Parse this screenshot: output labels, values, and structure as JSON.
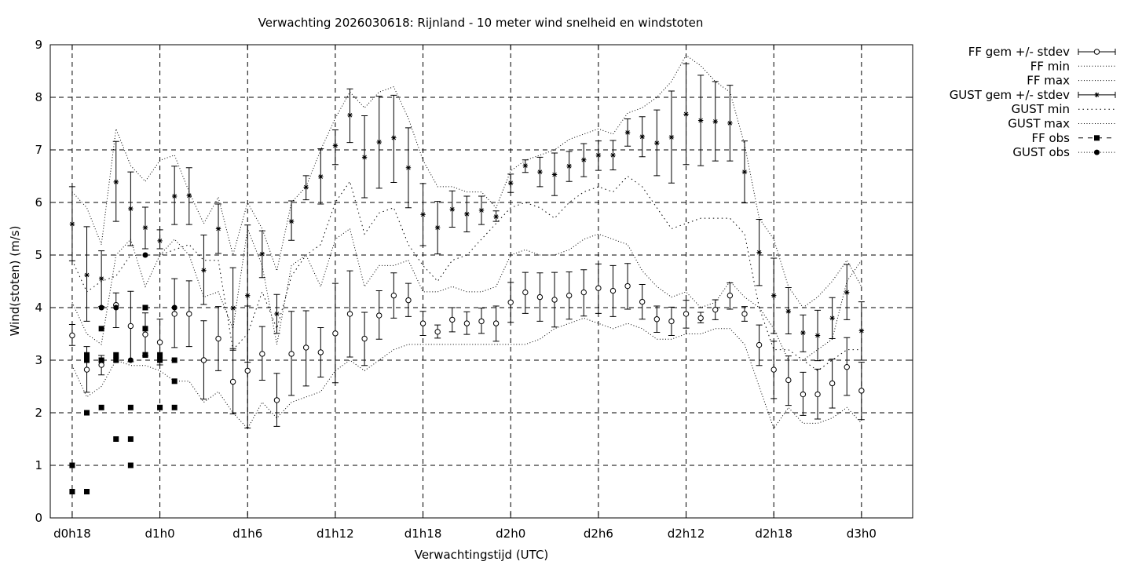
{
  "chart_data": {
    "type": "line",
    "title": "Verwachting 2026030618: Rijnland - 10 meter wind snelheid en windstoten",
    "xlabel": "Verwachtingstijd (UTC)",
    "ylabel": "Wind(stoten) (m/s)",
    "x_unit": "hours since d0h18",
    "xlim": [
      -1.5,
      57.5
    ],
    "ylim": [
      0,
      9
    ],
    "yticks": [
      0,
      1,
      2,
      3,
      4,
      5,
      6,
      7,
      8,
      9
    ],
    "xticks": [
      {
        "x": 0,
        "label": "d0h18"
      },
      {
        "x": 6,
        "label": "d1h0"
      },
      {
        "x": 12,
        "label": "d1h6"
      },
      {
        "x": 18,
        "label": "d1h12"
      },
      {
        "x": 24,
        "label": "d1h18"
      },
      {
        "x": 30,
        "label": "d2h0"
      },
      {
        "x": 36,
        "label": "d2h6"
      },
      {
        "x": 42,
        "label": "d2h12"
      },
      {
        "x": 48,
        "label": "d2h18"
      },
      {
        "x": 54,
        "label": "d3h0"
      }
    ],
    "grid": true,
    "legend_position": "outside-right",
    "series": [
      {
        "name": "FF gem +/- stdev",
        "style": "errorbar-circle",
        "x": [
          0,
          1,
          2,
          3,
          4,
          5,
          6,
          7,
          8,
          9,
          10,
          11,
          12,
          13,
          14,
          15,
          16,
          17,
          18,
          19,
          20,
          21,
          22,
          23,
          24,
          25,
          26,
          27,
          28,
          29,
          30,
          31,
          32,
          33,
          34,
          35,
          36,
          37,
          38,
          39,
          40,
          41,
          42,
          43,
          44,
          45,
          46,
          47,
          48,
          49,
          50,
          51,
          52,
          53,
          54
        ],
        "y": [
          3.47,
          2.82,
          2.91,
          4.05,
          3.65,
          3.49,
          3.34,
          3.88,
          3.88,
          3.0,
          3.41,
          2.59,
          2.8,
          3.12,
          2.24,
          3.12,
          3.24,
          3.15,
          3.51,
          3.88,
          3.41,
          3.85,
          4.23,
          4.14,
          3.7,
          3.54,
          3.77,
          3.7,
          3.74,
          3.7,
          4.1,
          4.29,
          4.2,
          4.15,
          4.23,
          4.29,
          4.37,
          4.32,
          4.41,
          4.11,
          3.78,
          3.74,
          3.88,
          3.8,
          3.96,
          4.23,
          3.88,
          3.29,
          2.82,
          2.62,
          2.35,
          2.35,
          2.56,
          2.87,
          2.42
        ],
        "ylow": [
          3.28,
          2.39,
          2.72,
          3.62,
          2.97,
          3.08,
          2.91,
          3.24,
          3.26,
          2.26,
          2.8,
          1.98,
          1.71,
          2.62,
          1.74,
          2.33,
          2.51,
          2.68,
          2.57,
          3.06,
          2.9,
          3.4,
          3.8,
          3.83,
          3.47,
          3.42,
          3.54,
          3.49,
          3.51,
          3.36,
          3.72,
          3.89,
          3.74,
          3.63,
          3.78,
          3.84,
          3.89,
          3.83,
          3.97,
          3.78,
          3.53,
          3.47,
          3.61,
          3.71,
          3.77,
          3.97,
          3.74,
          2.9,
          2.27,
          2.14,
          1.95,
          1.88,
          2.09,
          2.33,
          1.87
        ],
        "yhigh": [
          3.68,
          3.26,
          3.09,
          4.28,
          4.31,
          3.9,
          3.78,
          4.55,
          4.51,
          3.75,
          4.02,
          3.19,
          4.03,
          3.64,
          2.75,
          3.93,
          3.94,
          3.62,
          4.46,
          4.7,
          3.91,
          4.32,
          4.66,
          4.46,
          3.93,
          3.67,
          4.0,
          3.92,
          3.99,
          4.03,
          4.48,
          4.67,
          4.66,
          4.67,
          4.68,
          4.72,
          4.83,
          4.8,
          4.84,
          4.44,
          4.03,
          4.01,
          4.14,
          3.91,
          4.15,
          4.47,
          4.02,
          3.67,
          3.36,
          3.08,
          2.77,
          2.83,
          3.02,
          3.43,
          2.96
        ]
      },
      {
        "name": "FF min",
        "style": "dotted",
        "x": [
          0,
          1,
          2,
          3,
          4,
          5,
          6,
          7,
          8,
          9,
          10,
          11,
          12,
          13,
          14,
          15,
          16,
          17,
          18,
          19,
          20,
          21,
          22,
          23,
          24,
          25,
          26,
          27,
          28,
          29,
          30,
          31,
          32,
          33,
          34,
          35,
          36,
          37,
          38,
          39,
          40,
          41,
          42,
          43,
          44,
          45,
          46,
          47,
          48,
          49,
          50,
          51,
          52,
          53,
          54
        ],
        "y": [
          2.9,
          2.3,
          2.5,
          3.0,
          2.9,
          2.9,
          2.8,
          2.6,
          2.6,
          2.2,
          2.4,
          2.0,
          1.7,
          2.2,
          1.9,
          2.2,
          2.3,
          2.4,
          2.8,
          3.0,
          2.8,
          3.0,
          3.2,
          3.3,
          3.3,
          3.3,
          3.3,
          3.3,
          3.3,
          3.3,
          3.3,
          3.3,
          3.4,
          3.6,
          3.7,
          3.8,
          3.7,
          3.6,
          3.7,
          3.6,
          3.4,
          3.4,
          3.5,
          3.5,
          3.6,
          3.6,
          3.3,
          2.5,
          1.7,
          2.1,
          1.8,
          1.8,
          1.9,
          2.1,
          1.8
        ]
      },
      {
        "name": "FF max",
        "style": "dotted",
        "x": [
          0,
          1,
          2,
          3,
          4,
          5,
          6,
          7,
          8,
          9,
          10,
          11,
          12,
          13,
          14,
          15,
          16,
          17,
          18,
          19,
          20,
          21,
          22,
          23,
          24,
          25,
          26,
          27,
          28,
          29,
          30,
          31,
          32,
          33,
          34,
          35,
          36,
          37,
          38,
          39,
          40,
          41,
          42,
          43,
          44,
          45,
          46,
          47,
          48,
          49,
          50,
          51,
          52,
          53,
          54
        ],
        "y": [
          4.1,
          3.5,
          3.3,
          5.0,
          5.3,
          4.4,
          5.0,
          5.3,
          5.0,
          4.2,
          4.3,
          3.6,
          5.5,
          4.8,
          3.3,
          4.8,
          5.0,
          4.4,
          5.3,
          5.5,
          4.4,
          4.8,
          4.8,
          4.9,
          4.3,
          4.3,
          4.4,
          4.3,
          4.3,
          4.4,
          5.0,
          5.1,
          5.0,
          5.0,
          5.1,
          5.3,
          5.4,
          5.3,
          5.2,
          4.7,
          4.4,
          4.2,
          4.3,
          4.0,
          4.1,
          4.5,
          4.2,
          4.0,
          3.6,
          3.0,
          3.0,
          3.2,
          3.4,
          4.5,
          4.9
        ]
      },
      {
        "name": "GUST gem +/- stdev",
        "style": "errorbar-star",
        "x": [
          0,
          1,
          2,
          3,
          4,
          5,
          6,
          7,
          8,
          9,
          10,
          11,
          12,
          13,
          14,
          15,
          16,
          17,
          18,
          19,
          20,
          21,
          22,
          23,
          24,
          25,
          26,
          27,
          28,
          29,
          30,
          31,
          32,
          33,
          34,
          35,
          36,
          37,
          38,
          39,
          40,
          41,
          42,
          43,
          44,
          45,
          46,
          47,
          48,
          49,
          50,
          51,
          52,
          53,
          54
        ],
        "y": [
          5.59,
          4.62,
          4.55,
          6.39,
          5.88,
          5.52,
          5.27,
          6.12,
          6.13,
          4.71,
          5.5,
          3.99,
          4.23,
          5.02,
          3.88,
          5.64,
          6.29,
          6.49,
          7.08,
          7.66,
          6.86,
          7.15,
          7.23,
          6.66,
          5.77,
          5.52,
          5.87,
          5.78,
          5.85,
          5.73,
          6.37,
          6.7,
          6.58,
          6.53,
          6.69,
          6.81,
          6.9,
          6.9,
          7.33,
          7.25,
          7.13,
          7.24,
          7.68,
          7.56,
          7.54,
          7.51,
          6.58,
          5.05,
          4.23,
          3.93,
          3.52,
          3.47,
          3.8,
          4.29,
          3.56
        ],
        "ylow": [
          4.89,
          3.74,
          4.02,
          5.64,
          5.18,
          5.12,
          5.12,
          5.58,
          5.58,
          4.06,
          5.03,
          3.22,
          2.96,
          4.57,
          3.51,
          5.28,
          6.05,
          5.97,
          6.72,
          7.14,
          6.09,
          6.27,
          6.38,
          5.9,
          5.18,
          5.02,
          5.53,
          5.44,
          5.58,
          5.64,
          6.19,
          6.57,
          6.3,
          6.13,
          6.4,
          6.49,
          6.61,
          6.62,
          7.07,
          6.87,
          6.51,
          6.37,
          6.72,
          6.7,
          6.79,
          6.79,
          5.99,
          4.42,
          3.51,
          3.5,
          3.16,
          2.99,
          3.41,
          3.77,
          3.0
        ],
        "yhigh": [
          6.3,
          5.54,
          5.08,
          7.16,
          6.58,
          5.91,
          5.48,
          6.69,
          6.66,
          5.38,
          5.97,
          4.76,
          5.57,
          5.46,
          4.25,
          6.03,
          6.51,
          7.02,
          7.38,
          8.16,
          7.65,
          8.02,
          8.04,
          7.42,
          6.36,
          6.02,
          6.22,
          6.12,
          6.12,
          5.84,
          6.54,
          6.81,
          6.86,
          6.94,
          6.97,
          7.12,
          7.17,
          7.18,
          7.59,
          7.63,
          7.76,
          8.12,
          8.64,
          8.42,
          8.3,
          8.23,
          7.17,
          5.68,
          4.94,
          4.38,
          3.86,
          3.95,
          4.19,
          4.82,
          4.11
        ]
      },
      {
        "name": "GUST min",
        "style": "dotted",
        "x": [
          0,
          1,
          2,
          3,
          4,
          5,
          6,
          7,
          8,
          9,
          10,
          11,
          12,
          13,
          14,
          15,
          16,
          17,
          18,
          19,
          20,
          21,
          22,
          23,
          24,
          25,
          26,
          27,
          28,
          29,
          30,
          31,
          32,
          33,
          34,
          35,
          36,
          37,
          38,
          39,
          40,
          41,
          42,
          43,
          44,
          45,
          46,
          47,
          48,
          49,
          50,
          51,
          52,
          53,
          54
        ],
        "y": [
          4.9,
          4.3,
          4.5,
          4.6,
          5.0,
          5.0,
          5.0,
          5.1,
          5.2,
          4.9,
          4.9,
          3.2,
          3.5,
          4.3,
          3.6,
          4.6,
          5.0,
          5.2,
          6.0,
          6.4,
          5.4,
          5.8,
          5.9,
          5.2,
          4.8,
          4.5,
          4.9,
          5.0,
          5.3,
          5.6,
          5.9,
          6.0,
          5.9,
          5.7,
          6.0,
          6.2,
          6.3,
          6.2,
          6.5,
          6.3,
          5.9,
          5.5,
          5.6,
          5.7,
          5.7,
          5.7,
          5.4,
          4.0,
          3.2,
          3.2,
          3.0,
          2.8,
          3.0,
          3.2,
          3.2
        ]
      },
      {
        "name": "GUST max",
        "style": "dotted",
        "x": [
          0,
          1,
          2,
          3,
          4,
          5,
          6,
          7,
          8,
          9,
          10,
          11,
          12,
          13,
          14,
          15,
          16,
          17,
          18,
          19,
          20,
          21,
          22,
          23,
          24,
          25,
          26,
          27,
          28,
          29,
          30,
          31,
          32,
          33,
          34,
          35,
          36,
          37,
          38,
          39,
          40,
          41,
          42,
          43,
          44,
          45,
          46,
          47,
          48,
          49,
          50,
          51,
          52,
          53,
          54
        ],
        "y": [
          6.2,
          5.9,
          5.2,
          7.4,
          6.7,
          6.4,
          6.8,
          6.9,
          6.2,
          5.6,
          6.1,
          5.0,
          6.0,
          5.5,
          4.7,
          6.0,
          6.3,
          7.0,
          7.6,
          8.1,
          7.8,
          8.1,
          8.2,
          7.6,
          6.8,
          6.3,
          6.3,
          6.2,
          6.2,
          5.9,
          6.6,
          6.8,
          6.9,
          7.0,
          7.2,
          7.3,
          7.4,
          7.3,
          7.7,
          7.8,
          8.0,
          8.3,
          8.8,
          8.6,
          8.3,
          8.1,
          7.1,
          5.7,
          5.3,
          4.4,
          4.0,
          4.2,
          4.5,
          4.9,
          4.4
        ]
      },
      {
        "name": "FF obs",
        "style": "square",
        "x": [
          0,
          0,
          1,
          1,
          1,
          1,
          2,
          2,
          2,
          2,
          3,
          3,
          3,
          4,
          4,
          4,
          5,
          5,
          5,
          5,
          6,
          6,
          6,
          7,
          7,
          7
        ],
        "y": [
          1.0,
          0.5,
          3.1,
          3.0,
          2.0,
          0.5,
          3.6,
          3.0,
          2.1,
          3.0,
          3.1,
          3.0,
          1.5,
          2.1,
          1.5,
          1.0,
          4.0,
          3.6,
          3.1,
          3.1,
          3.1,
          3.0,
          2.1,
          3.0,
          2.6,
          2.1
        ]
      },
      {
        "name": "GUST obs",
        "style": "circle",
        "x": [
          1,
          2,
          3,
          4,
          5,
          7
        ],
        "y": [
          3.0,
          4.0,
          4.0,
          3.0,
          5.0,
          4.0
        ]
      }
    ]
  }
}
